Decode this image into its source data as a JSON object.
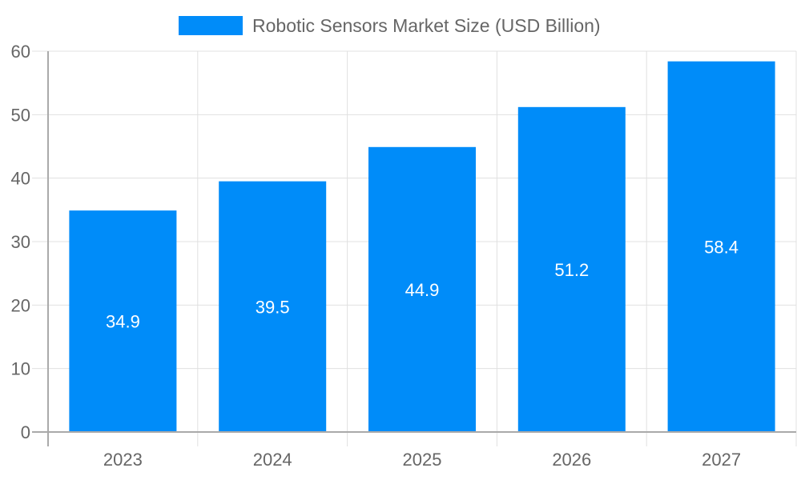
{
  "chart_data": {
    "type": "bar",
    "title": "",
    "xlabel": "",
    "ylabel": "",
    "categories": [
      "2023",
      "2024",
      "2025",
      "2026",
      "2027"
    ],
    "series": [
      {
        "name": "Robotic Sensors Market Size (USD Billion)",
        "values": [
          34.9,
          39.5,
          44.9,
          51.2,
          58.4
        ],
        "color": "#008cf9"
      }
    ],
    "data_labels": [
      "34.9",
      "39.5",
      "44.9",
      "51.2",
      "58.4"
    ],
    "ylim": [
      0,
      60
    ],
    "yticks": [
      "0",
      "10",
      "20",
      "30",
      "40",
      "50",
      "60"
    ],
    "grid": true,
    "legend_position": "top"
  }
}
